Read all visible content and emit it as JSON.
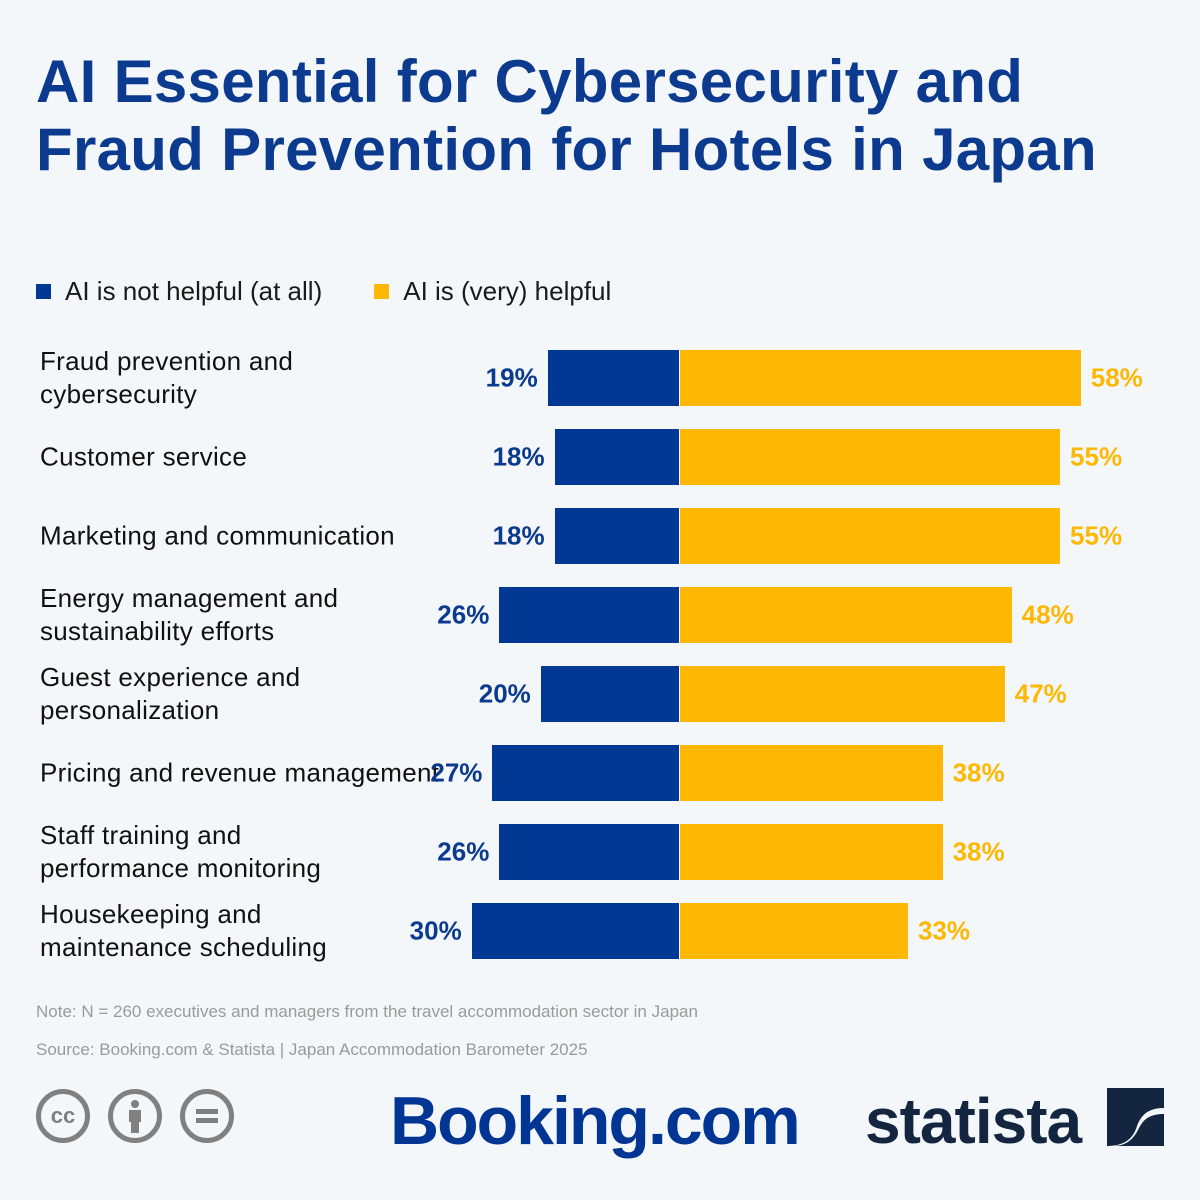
{
  "title": "AI Essential for Cybersecurity and Fraud Prevention for Hotels in Japan",
  "colors": {
    "not_helpful": "#003894",
    "helpful": "#feb702",
    "title": "#0b3a8e",
    "background": "#f4f7fa"
  },
  "chart_data": {
    "type": "bar",
    "orientation": "horizontal-diverging",
    "title": "AI Essential for Cybersecurity and Fraud Prevention for Hotels in Japan",
    "legend_position": "top-left",
    "grid": false,
    "unit": "%",
    "categories": [
      "Fraud prevention and cybersecurity",
      "Customer service",
      "Marketing and communication",
      "Energy management and sustainability efforts",
      "Guest experience and personalization",
      "Pricing and revenue management",
      "Staff training and performance monitoring",
      "Housekeeping and maintenance scheduling"
    ],
    "series": [
      {
        "name": "AI is not helpful (at all)",
        "values": [
          19,
          18,
          18,
          26,
          20,
          27,
          26,
          30
        ]
      },
      {
        "name": "AI is (very) helpful",
        "values": [
          58,
          55,
          55,
          48,
          47,
          38,
          38,
          33
        ]
      }
    ]
  },
  "footer": {
    "note": "Note: N = 260 executives and managers from the travel accommodation sector in Japan",
    "source": "Source: Booking.com & Statista | Japan Accommodation Barometer 2025",
    "logos": {
      "booking": "Booking.com",
      "statista": "statista"
    },
    "license_icons": [
      "cc-icon",
      "attribution-icon",
      "no-derivatives-icon"
    ]
  }
}
